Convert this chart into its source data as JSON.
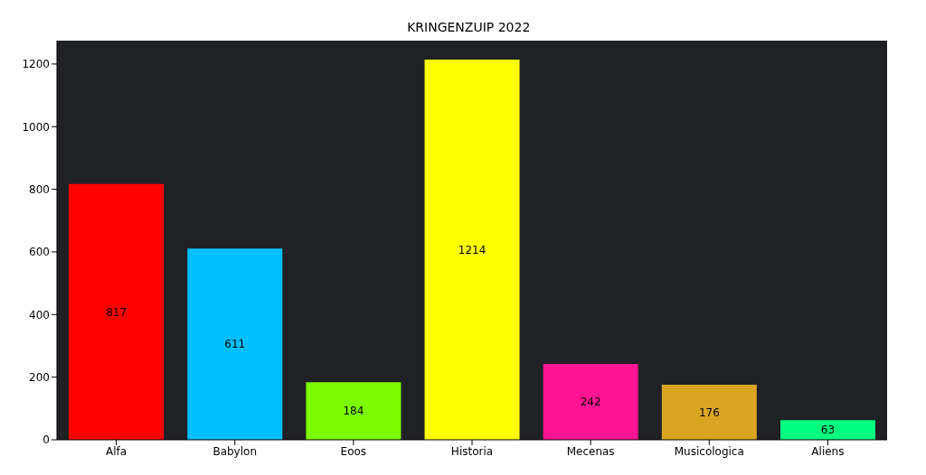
{
  "chart_data": {
    "type": "bar",
    "title": "KRINGENZUIP 2022",
    "categories": [
      "Alfa",
      "Babylon",
      "Eoos",
      "Historia",
      "Mecenas",
      "Musicologica",
      "Aliens"
    ],
    "values": [
      817,
      611,
      184,
      1214,
      242,
      176,
      63
    ],
    "colors": [
      "#ff0000",
      "#00bfff",
      "#7cfc00",
      "#ffff00",
      "#ff1493",
      "#daa520",
      "#00ff7f"
    ],
    "ylim": [
      0,
      1274.7
    ],
    "yticks": [
      0,
      200,
      400,
      600,
      800,
      1000,
      1200
    ],
    "data_labels": true,
    "grid": false
  }
}
